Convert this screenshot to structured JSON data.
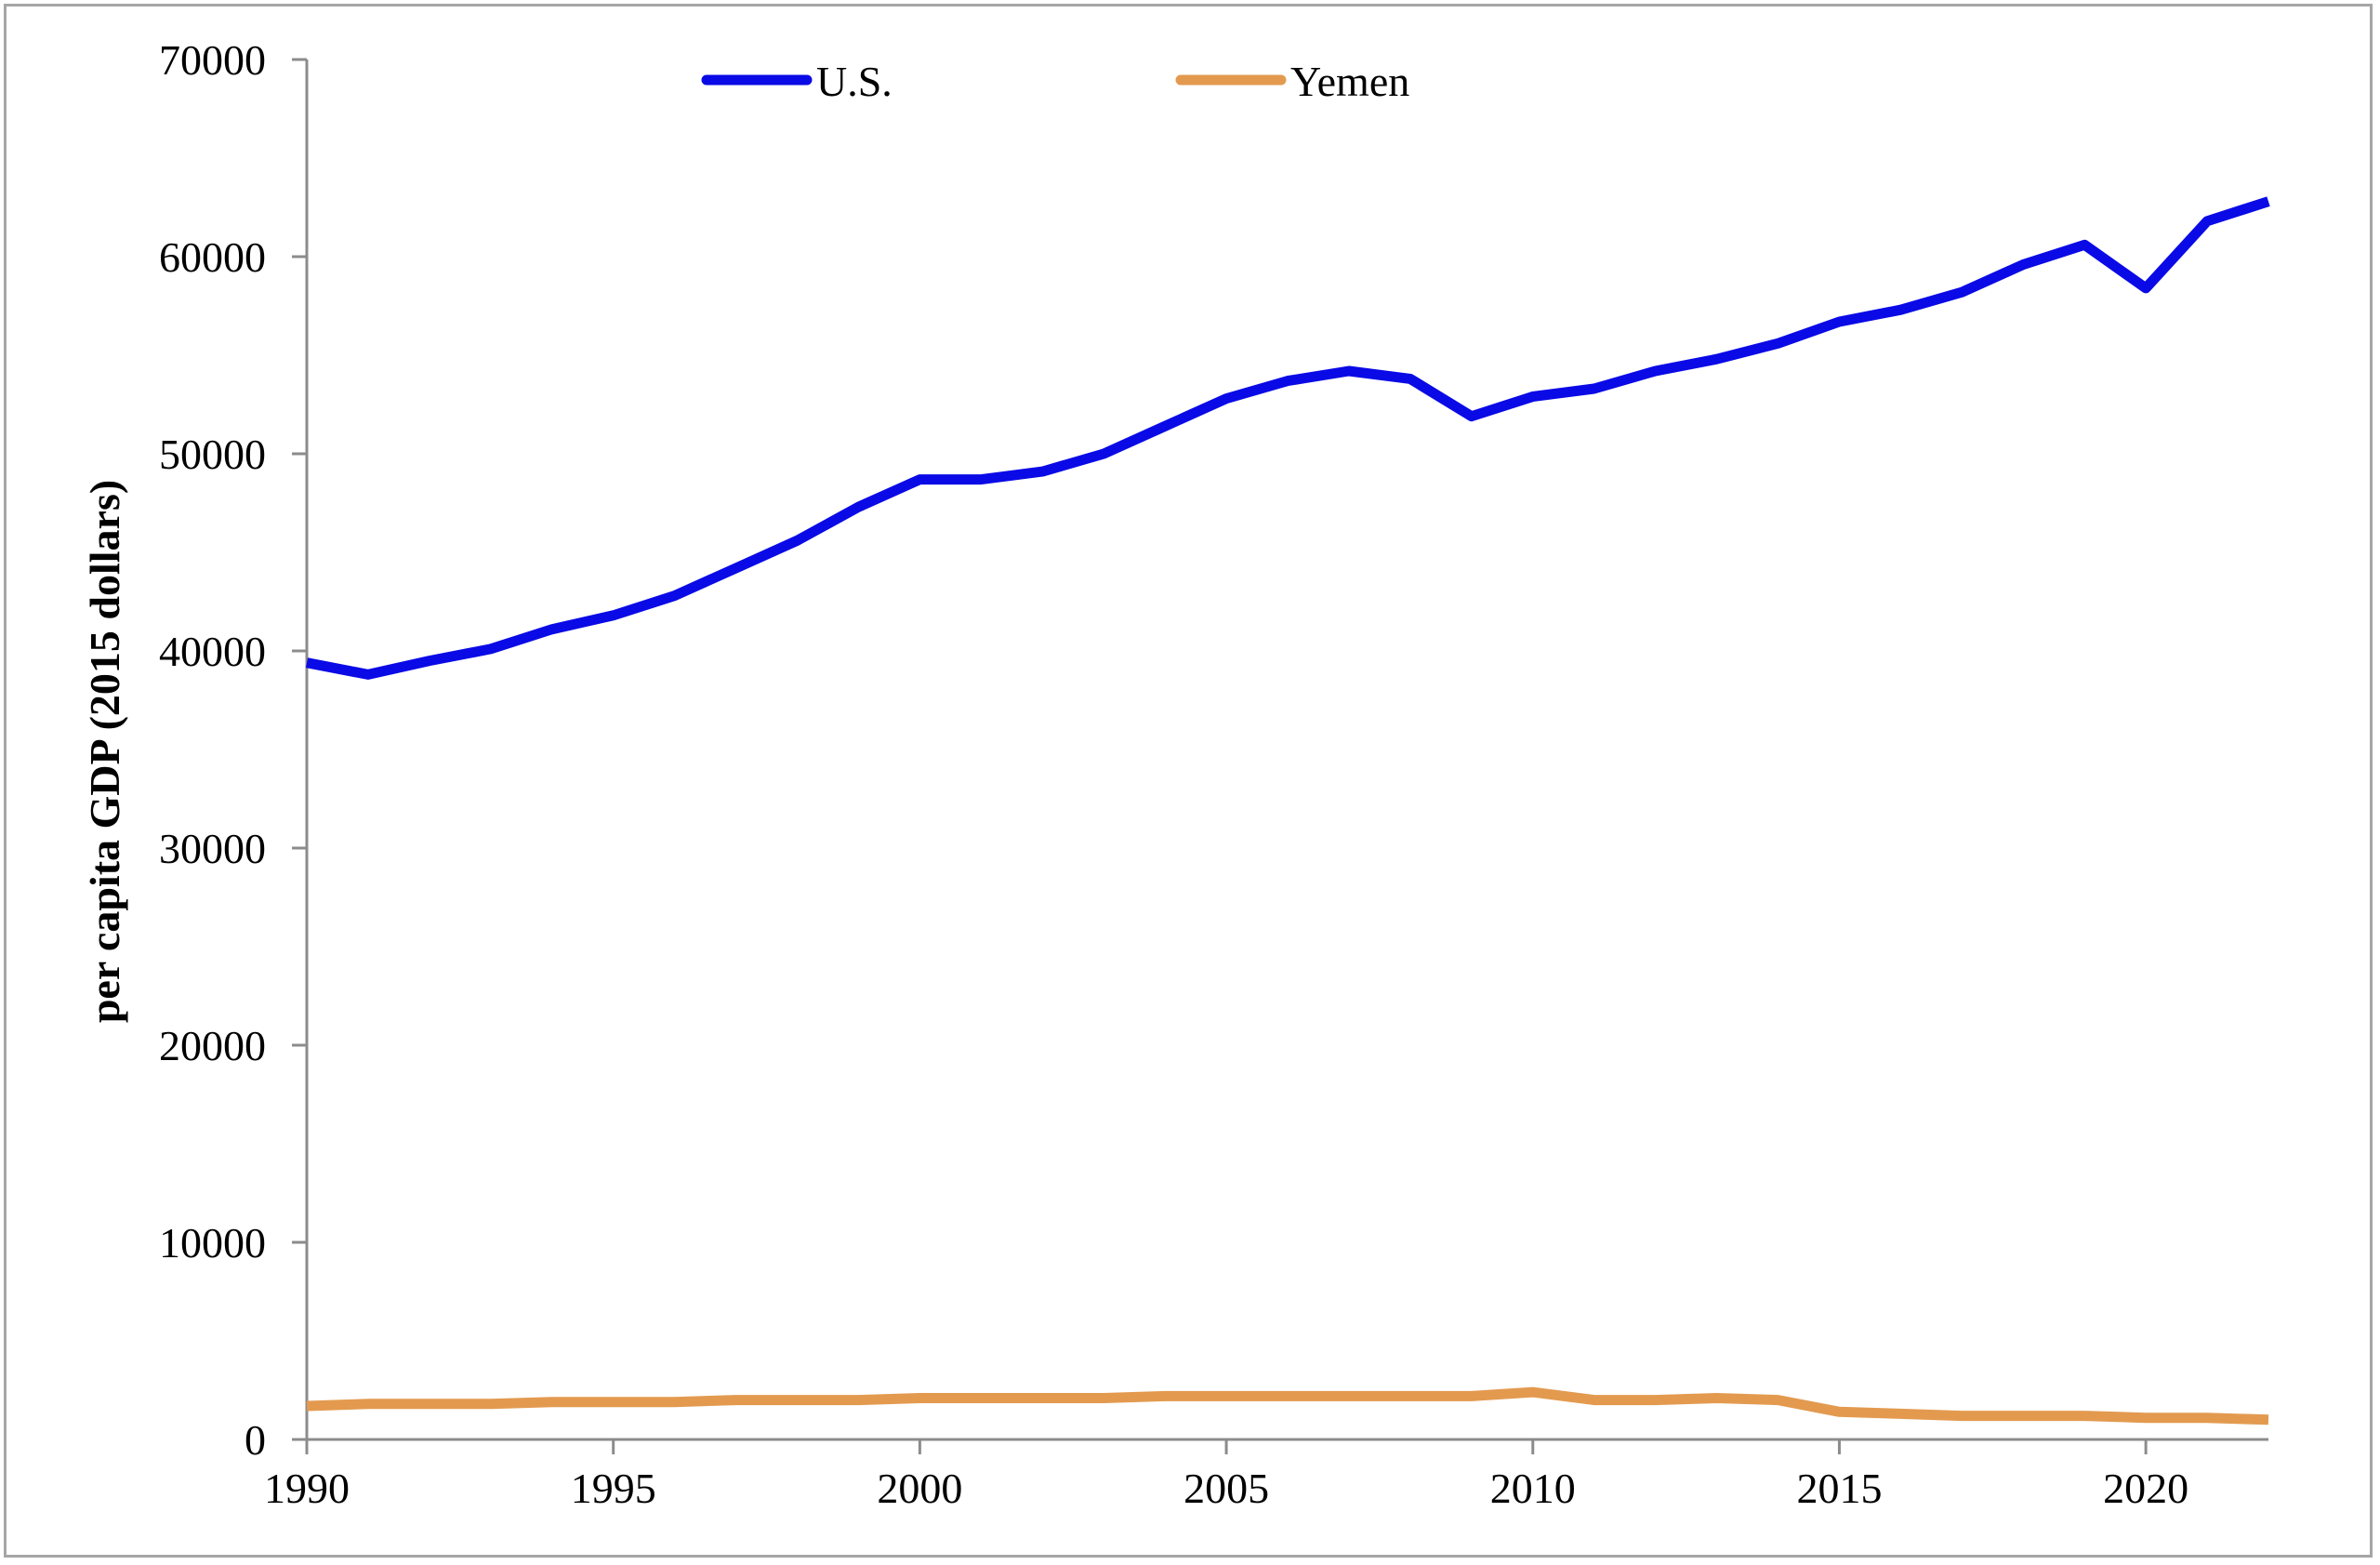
{
  "chart_data": {
    "type": "line",
    "title": "",
    "xlabel": "",
    "ylabel": "per capita GDP (2015 dollars)",
    "xlim": [
      1990,
      2022
    ],
    "ylim": [
      0,
      70000
    ],
    "x_ticks": [
      1990,
      1995,
      2000,
      2005,
      2010,
      2015,
      2020
    ],
    "y_ticks": [
      0,
      10000,
      20000,
      30000,
      40000,
      50000,
      60000,
      70000
    ],
    "grid": false,
    "legend_position": "top",
    "x": [
      1990,
      1991,
      1992,
      1993,
      1994,
      1995,
      1996,
      1997,
      1998,
      1999,
      2000,
      2001,
      2002,
      2003,
      2004,
      2005,
      2006,
      2007,
      2008,
      2009,
      2010,
      2011,
      2012,
      2013,
      2014,
      2015,
      2016,
      2017,
      2018,
      2019,
      2020,
      2021,
      2022
    ],
    "series": [
      {
        "name": "U.S.",
        "color": "#0a0ae6",
        "values": [
          39400,
          38800,
          39500,
          40100,
          41100,
          41800,
          42800,
          44200,
          45600,
          47300,
          48700,
          48700,
          49100,
          50000,
          51400,
          52800,
          53700,
          54200,
          53800,
          51900,
          52900,
          53300,
          54200,
          54800,
          55600,
          56700,
          57300,
          58200,
          59600,
          60600,
          58400,
          61800,
          62800
        ]
      },
      {
        "name": "Yemen",
        "color": "#e39a4f",
        "values": [
          1700,
          1800,
          1800,
          1800,
          1900,
          1900,
          1900,
          2000,
          2000,
          2000,
          2100,
          2100,
          2100,
          2100,
          2200,
          2200,
          2200,
          2200,
          2200,
          2200,
          2400,
          2000,
          2000,
          2100,
          2000,
          1400,
          1300,
          1200,
          1200,
          1200,
          1100,
          1100,
          1000
        ]
      }
    ]
  }
}
